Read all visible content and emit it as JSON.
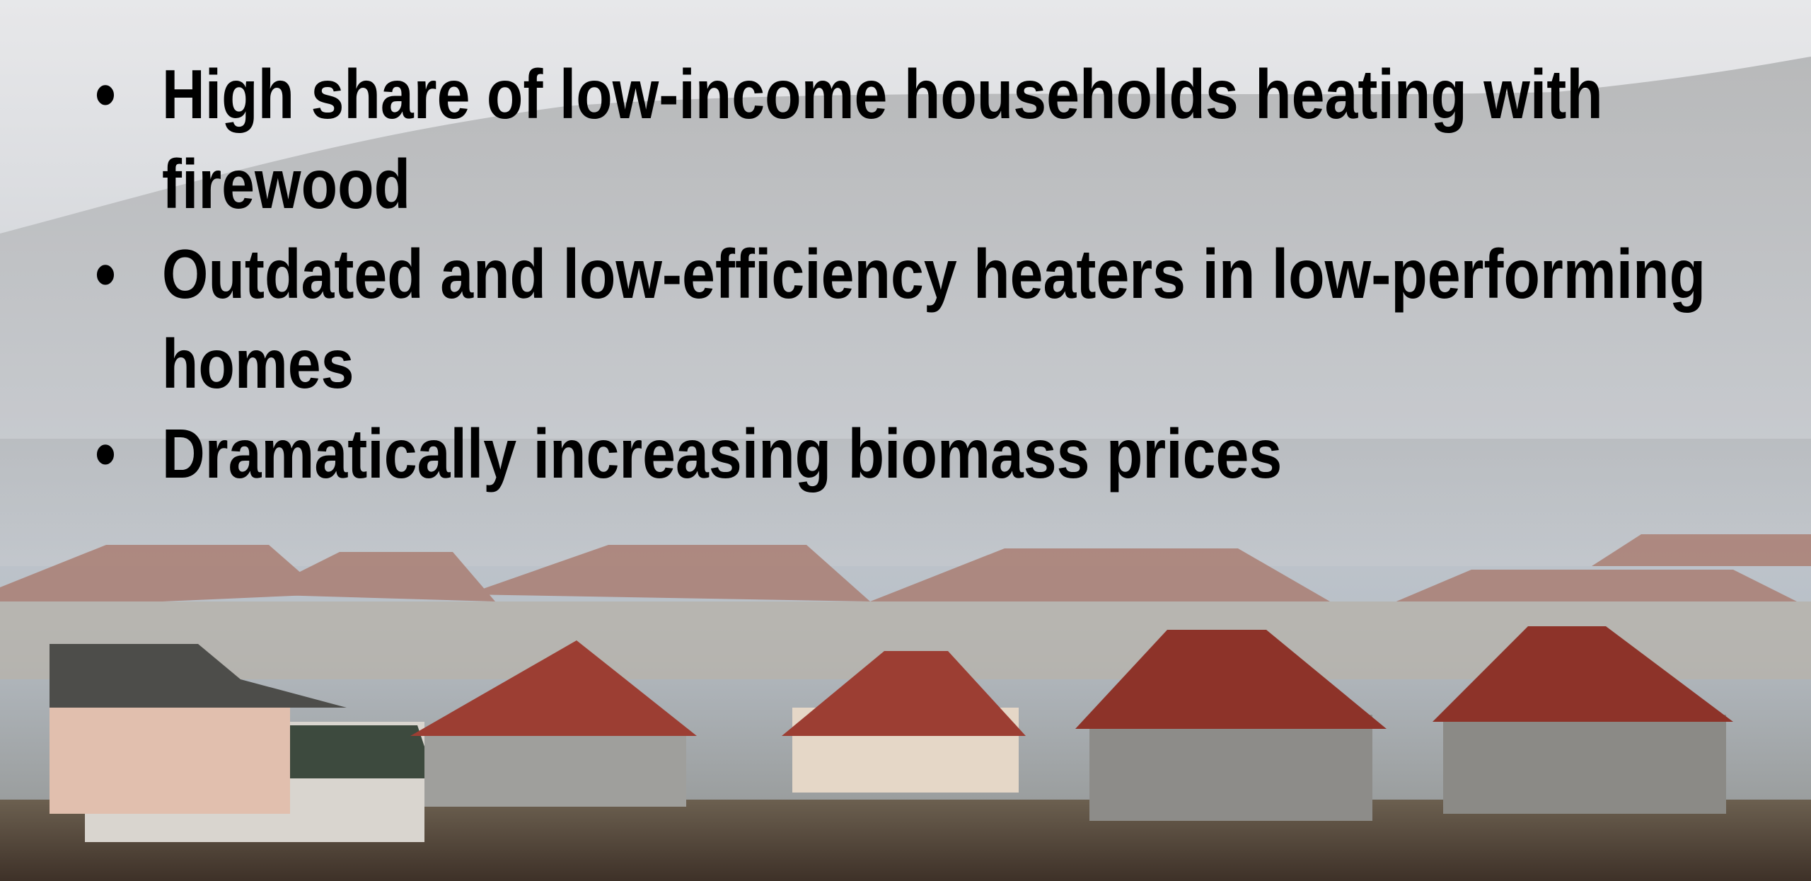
{
  "slide": {
    "bullets": [
      "High share of low-income households heating with firewood",
      "Outdated and low-efficiency heaters in low-performing homes",
      "Dramatically increasing biomass prices"
    ]
  }
}
